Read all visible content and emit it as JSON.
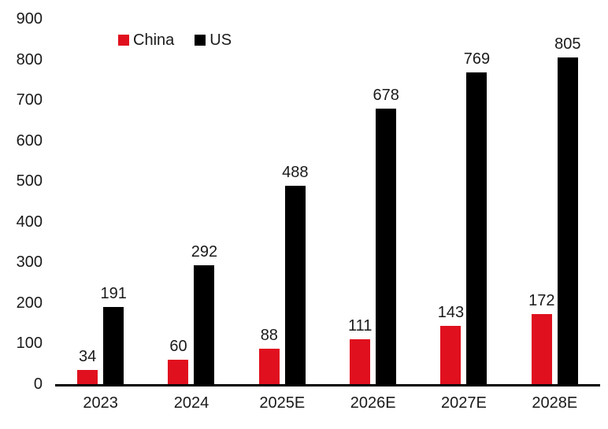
{
  "chart_data": {
    "type": "bar",
    "title": "",
    "xlabel": "",
    "ylabel": "",
    "categories": [
      "2023",
      "2024",
      "2025E",
      "2026E",
      "2027E",
      "2028E"
    ],
    "series": [
      {
        "name": "China",
        "color": "#e0101e",
        "values": [
          34,
          60,
          88,
          111,
          143,
          172
        ]
      },
      {
        "name": "US",
        "color": "#000000",
        "values": [
          191,
          292,
          488,
          678,
          769,
          805
        ]
      }
    ],
    "ylim": [
      0,
      900
    ],
    "yticks": [
      0,
      100,
      200,
      300,
      400,
      500,
      600,
      700,
      800,
      900
    ],
    "grid": false,
    "data_labels": true,
    "legend_position": "top-left"
  },
  "colors": {
    "background": "#ffffff",
    "text": "#1a1a1a",
    "axis_line": "#000000"
  }
}
